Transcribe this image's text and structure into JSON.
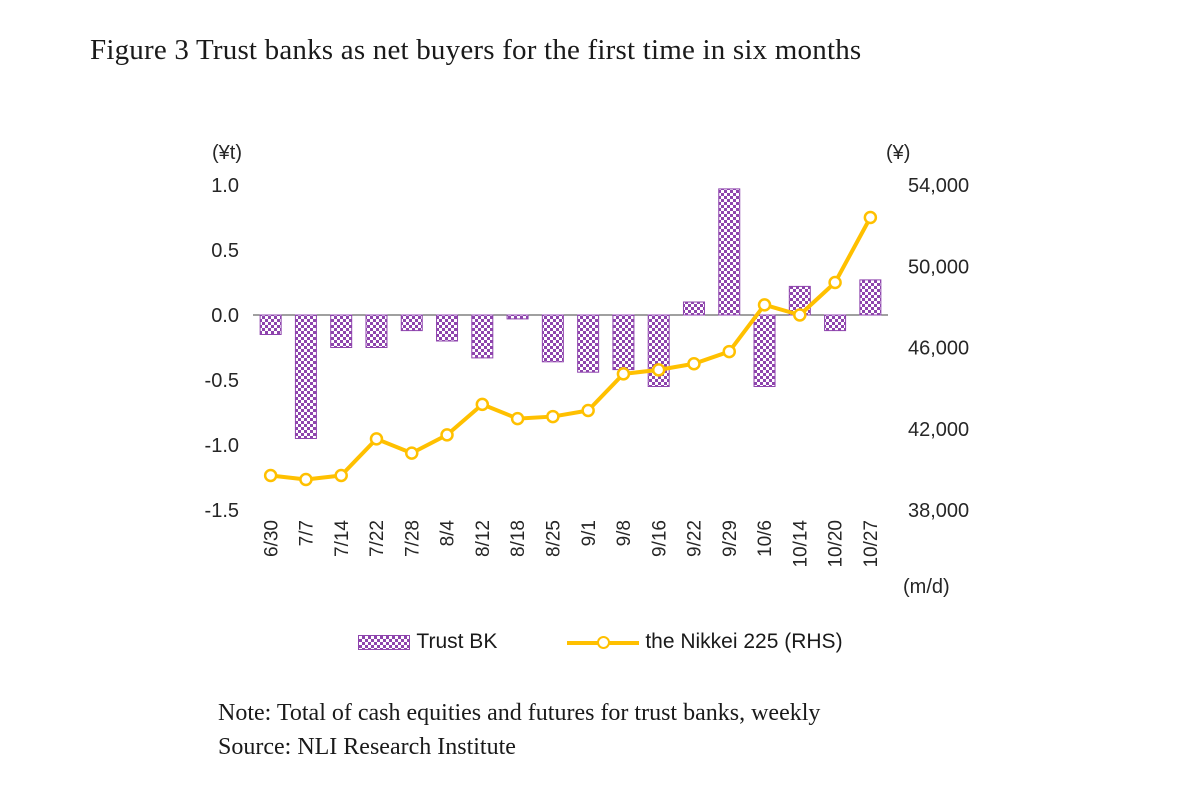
{
  "figure": {
    "title": "Figure 3 Trust banks as net buyers for the first time in six months",
    "note": "Note: Total of cash equities and futures for trust banks, weekly",
    "source": "Source: NLI Research Institute"
  },
  "chart_data": {
    "type": "bar",
    "subtype": "combo bar + line, dual axis",
    "categories": [
      "6/30",
      "7/7",
      "7/14",
      "7/22",
      "7/28",
      "8/4",
      "8/12",
      "8/18",
      "8/25",
      "9/1",
      "9/8",
      "9/16",
      "9/22",
      "9/29",
      "10/6",
      "10/14",
      "10/20",
      "10/27"
    ],
    "series": [
      {
        "name": "Trust BK",
        "type": "bar",
        "axis": "left",
        "color": "#8E44AD",
        "pattern": "checker",
        "values": [
          -0.15,
          -0.95,
          -0.25,
          -0.25,
          -0.12,
          -0.2,
          -0.33,
          -0.03,
          -0.36,
          -0.44,
          -0.42,
          -0.55,
          0.1,
          0.97,
          -0.55,
          0.22,
          -0.12,
          0.27
        ]
      },
      {
        "name": "the Nikkei 225 (RHS)",
        "type": "line",
        "axis": "right",
        "color": "#FFC000",
        "marker": "circle-open",
        "values": [
          39700,
          39500,
          39700,
          41500,
          40800,
          41700,
          43200,
          42500,
          42600,
          42900,
          44700,
          44900,
          45200,
          45800,
          48100,
          47600,
          49200,
          52400
        ]
      }
    ],
    "left_axis": {
      "unit_label": "(¥t)",
      "min": -1.5,
      "max": 1.0,
      "ticks": [
        1.0,
        0.5,
        0.0,
        -0.5,
        -1.0,
        -1.5
      ]
    },
    "right_axis": {
      "unit_label": "(¥)",
      "min": 38000,
      "max": 54000,
      "ticks": [
        54000,
        50000,
        46000,
        42000,
        38000
      ]
    },
    "x_axis": {
      "unit_label": "(m/d)"
    },
    "legend": [
      "Trust BK",
      "the Nikkei 225 (RHS)"
    ],
    "grid": "none",
    "zero_line_color": "#404040"
  }
}
